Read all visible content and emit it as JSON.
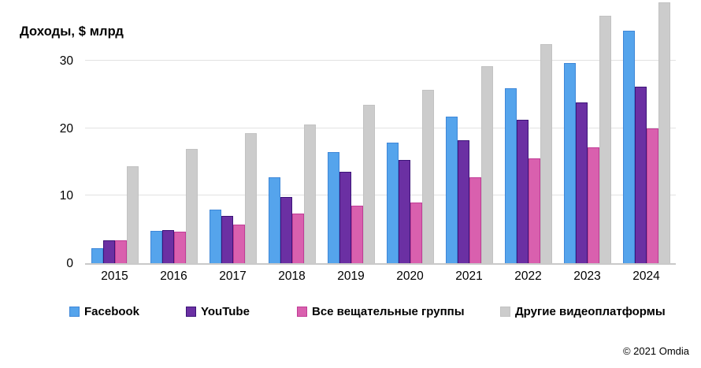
{
  "chart": {
    "title": "Доходы, $ млрд",
    "copyright": "© 2021 Omdia"
  },
  "chart_data": {
    "type": "bar",
    "title": "Доходы, $ млрд",
    "xlabel": "",
    "ylabel": "Доходы, $ млрд",
    "ylim": [
      0,
      39
    ],
    "yticks": [
      0,
      10,
      20,
      30
    ],
    "grid": "horizontal",
    "legend_position": "bottom",
    "categories": [
      "2015",
      "2016",
      "2017",
      "2018",
      "2019",
      "2020",
      "2021",
      "2022",
      "2023",
      "2024"
    ],
    "series": [
      {
        "name": "Facebook",
        "color": "#55a4ec",
        "border_color": "#3e87d8",
        "values": [
          2.1,
          4.7,
          7.8,
          12.6,
          16.4,
          17.8,
          21.6,
          25.8,
          29.5,
          34.3
        ]
      },
      {
        "name": "YouTube",
        "color": "#6b30a3",
        "border_color": "#3c1478",
        "values": [
          3.3,
          4.8,
          6.9,
          9.7,
          13.4,
          15.2,
          18.1,
          21.1,
          23.7,
          26.0
        ]
      },
      {
        "name": "Все вещательные группы",
        "color": "#d960ae",
        "border_color": "#c03c96",
        "values": [
          3.3,
          4.5,
          5.6,
          7.2,
          8.4,
          8.9,
          12.6,
          15.4,
          17.0,
          19.8
        ]
      },
      {
        "name": "Другие видеоплатформы",
        "color": "#cccccc",
        "border_color": "#c2c2c2",
        "values": [
          14.2,
          16.8,
          19.2,
          20.4,
          23.3,
          25.6,
          29.1,
          32.4,
          36.5,
          38.5
        ]
      }
    ]
  }
}
